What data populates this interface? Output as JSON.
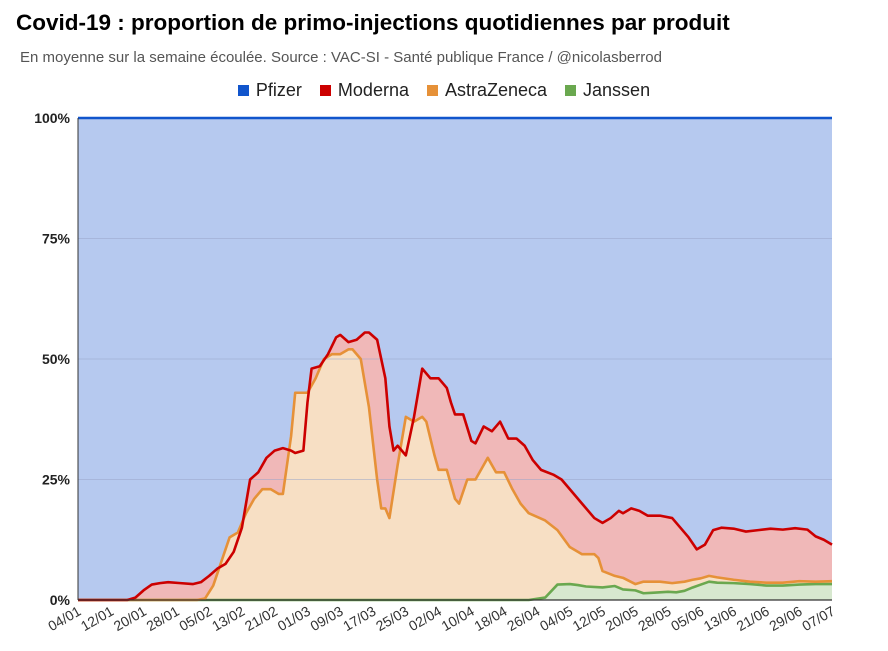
{
  "chart_data": {
    "type": "area",
    "stacked": true,
    "title": "Covid-19 : proportion de primo-injections quotidiennes par produit",
    "subtitle": "En moyenne sur la semaine écoulée. Source : VAC-SI - Santé publique France / @nicolasberrod",
    "xlabel": "",
    "ylabel": "",
    "ylim": [
      0,
      100
    ],
    "y_ticks": [
      "0%",
      "25%",
      "50%",
      "75%",
      "100%"
    ],
    "y_tick_values": [
      0,
      25,
      50,
      75,
      100
    ],
    "grid": true,
    "legend_position": "top",
    "x_tick_labels": [
      "04/01",
      "12/01",
      "20/01",
      "28/01",
      "05/02",
      "13/02",
      "21/02",
      "01/03",
      "09/03",
      "17/03",
      "25/03",
      "02/04",
      "10/04",
      "18/04",
      "26/04",
      "04/05",
      "12/05",
      "20/05",
      "28/05",
      "05/06",
      "13/06",
      "21/06",
      "29/06",
      "07/07"
    ],
    "day_range": [
      0,
      184
    ],
    "series": [
      {
        "name": "Pfizer",
        "line_color": "#1155cc",
        "fill_color": "#b6c9ef"
      },
      {
        "name": "Moderna",
        "line_color": "#cc0000",
        "fill_color": "#f0b8b8"
      },
      {
        "name": "AstraZeneca",
        "line_color": "#e69138",
        "fill_color": "#f7dfc4"
      },
      {
        "name": "Janssen",
        "line_color": "#6aa84f",
        "fill_color": "#d7e8cf"
      }
    ],
    "cumulative_top": [
      {
        "name": "Janssen",
        "points": [
          [
            0,
            0
          ],
          [
            110,
            0
          ],
          [
            114,
            0.5
          ],
          [
            117,
            3.2
          ],
          [
            120,
            3.3
          ],
          [
            122,
            3.1
          ],
          [
            124,
            2.8
          ],
          [
            128,
            2.6
          ],
          [
            131,
            2.9
          ],
          [
            133,
            2.2
          ],
          [
            136,
            2.0
          ],
          [
            138,
            1.4
          ],
          [
            140,
            1.5
          ],
          [
            144,
            1.7
          ],
          [
            146,
            1.6
          ],
          [
            148,
            1.9
          ],
          [
            150,
            2.6
          ],
          [
            152,
            3.2
          ],
          [
            154,
            3.8
          ],
          [
            156,
            3.6
          ],
          [
            160,
            3.5
          ],
          [
            164,
            3.3
          ],
          [
            168,
            3.0
          ],
          [
            172,
            3.0
          ],
          [
            176,
            3.2
          ],
          [
            180,
            3.3
          ],
          [
            184,
            3.3
          ]
        ]
      },
      {
        "name": "AstraZeneca",
        "points": [
          [
            0,
            0
          ],
          [
            29,
            0
          ],
          [
            31,
            0.3
          ],
          [
            33,
            3
          ],
          [
            35,
            8
          ],
          [
            37,
            13
          ],
          [
            39,
            14
          ],
          [
            41,
            18
          ],
          [
            43,
            21
          ],
          [
            45,
            23
          ],
          [
            47,
            23
          ],
          [
            49,
            22
          ],
          [
            50,
            22
          ],
          [
            52,
            34
          ],
          [
            53,
            43
          ],
          [
            56,
            43
          ],
          [
            58,
            46
          ],
          [
            60,
            50
          ],
          [
            62,
            51
          ],
          [
            64,
            51
          ],
          [
            66,
            52
          ],
          [
            67,
            52
          ],
          [
            69,
            50
          ],
          [
            71,
            40
          ],
          [
            73,
            25
          ],
          [
            74,
            19
          ],
          [
            75,
            19
          ],
          [
            76,
            17
          ],
          [
            78,
            28
          ],
          [
            80,
            38
          ],
          [
            82,
            37
          ],
          [
            84,
            38
          ],
          [
            85,
            37
          ],
          [
            87,
            30
          ],
          [
            88,
            27
          ],
          [
            90,
            27
          ],
          [
            92,
            21
          ],
          [
            93,
            20
          ],
          [
            95,
            25
          ],
          [
            97,
            25
          ],
          [
            99,
            28
          ],
          [
            100,
            29.5
          ],
          [
            102,
            26.5
          ],
          [
            104,
            26.5
          ],
          [
            106,
            23
          ],
          [
            108,
            20
          ],
          [
            110,
            18
          ],
          [
            114,
            16.5
          ],
          [
            117,
            14.5
          ],
          [
            120,
            11
          ],
          [
            123,
            9.5
          ],
          [
            126,
            9.5
          ],
          [
            127,
            8.7
          ],
          [
            128,
            6
          ],
          [
            131,
            5
          ],
          [
            133,
            4.6
          ],
          [
            136,
            3.3
          ],
          [
            138,
            3.8
          ],
          [
            142,
            3.8
          ],
          [
            145,
            3.5
          ],
          [
            148,
            3.8
          ],
          [
            150,
            4.2
          ],
          [
            152,
            4.5
          ],
          [
            154,
            5.0
          ],
          [
            156,
            4.7
          ],
          [
            160,
            4.2
          ],
          [
            164,
            3.8
          ],
          [
            168,
            3.6
          ],
          [
            172,
            3.6
          ],
          [
            176,
            3.9
          ],
          [
            180,
            3.8
          ],
          [
            184,
            3.9
          ]
        ]
      },
      {
        "name": "Moderna",
        "points": [
          [
            0,
            0
          ],
          [
            12,
            0
          ],
          [
            14,
            0.5
          ],
          [
            16,
            2
          ],
          [
            18,
            3.2
          ],
          [
            20,
            3.5
          ],
          [
            22,
            3.7
          ],
          [
            25,
            3.5
          ],
          [
            28,
            3.3
          ],
          [
            30,
            3.7
          ],
          [
            32,
            5
          ],
          [
            34,
            6.5
          ],
          [
            36,
            7.5
          ],
          [
            38,
            10
          ],
          [
            40,
            15
          ],
          [
            42,
            25
          ],
          [
            44,
            26.5
          ],
          [
            46,
            29.5
          ],
          [
            48,
            31
          ],
          [
            50,
            31.5
          ],
          [
            52,
            31
          ],
          [
            53,
            30.5
          ],
          [
            55,
            31
          ],
          [
            56,
            41
          ],
          [
            57,
            48
          ],
          [
            59,
            48.5
          ],
          [
            61,
            51
          ],
          [
            63,
            54.5
          ],
          [
            64,
            55
          ],
          [
            66,
            53.5
          ],
          [
            68,
            54
          ],
          [
            70,
            55.5
          ],
          [
            71,
            55.5
          ],
          [
            73,
            54
          ],
          [
            75,
            46
          ],
          [
            76,
            36
          ],
          [
            77,
            31
          ],
          [
            78,
            32
          ],
          [
            80,
            30
          ],
          [
            82,
            38
          ],
          [
            84,
            48
          ],
          [
            86,
            46
          ],
          [
            88,
            46
          ],
          [
            90,
            44
          ],
          [
            91,
            41
          ],
          [
            92,
            38.5
          ],
          [
            94,
            38.5
          ],
          [
            96,
            33
          ],
          [
            97,
            32.5
          ],
          [
            99,
            36
          ],
          [
            101,
            35
          ],
          [
            103,
            37
          ],
          [
            105,
            33.5
          ],
          [
            107,
            33.5
          ],
          [
            109,
            32
          ],
          [
            111,
            29
          ],
          [
            113,
            27
          ],
          [
            116,
            26
          ],
          [
            118,
            25
          ],
          [
            120,
            23
          ],
          [
            123,
            20
          ],
          [
            126,
            17
          ],
          [
            128,
            16
          ],
          [
            130,
            17
          ],
          [
            132,
            18.5
          ],
          [
            133,
            18
          ],
          [
            135,
            19
          ],
          [
            137,
            18.5
          ],
          [
            139,
            17.5
          ],
          [
            142,
            17.5
          ],
          [
            145,
            17
          ],
          [
            147,
            15
          ],
          [
            149,
            13
          ],
          [
            151,
            10.5
          ],
          [
            153,
            11.5
          ],
          [
            155,
            14.5
          ],
          [
            157,
            15
          ],
          [
            160,
            14.8
          ],
          [
            163,
            14.2
          ],
          [
            166,
            14.5
          ],
          [
            169,
            14.8
          ],
          [
            172,
            14.6
          ],
          [
            175,
            14.9
          ],
          [
            178,
            14.6
          ],
          [
            180,
            13.2
          ],
          [
            182,
            12.5
          ],
          [
            184,
            11.5
          ]
        ]
      },
      {
        "name": "Pfizer",
        "points": [
          [
            0,
            100
          ],
          [
            184,
            100
          ]
        ]
      }
    ]
  }
}
